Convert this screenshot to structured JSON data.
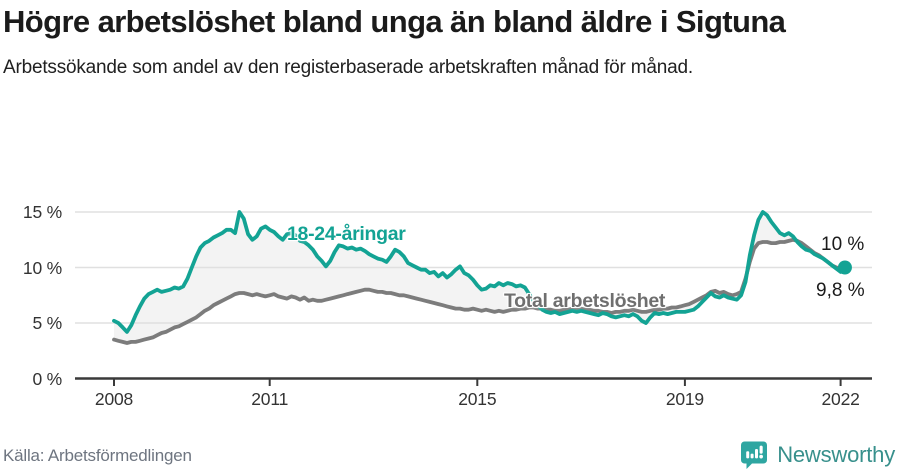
{
  "header": {
    "title": "Högre arbetslöshet bland unga än bland äldre i Sigtuna",
    "subtitle": "Arbetssökande som andel av den registerbaserade arbetskraften månad för månad."
  },
  "footer": {
    "source": "Källa: Arbetsförmedlingen",
    "logo_text": "Newsworthy"
  },
  "colors": {
    "youth_line": "#13A394",
    "total_line": "#7C7C7C",
    "total_label_text": "#6F6F6F",
    "area_fill": "#F3F3F3",
    "grid": "#E0E0E0",
    "axis": "#3A3A3A",
    "tick_text": "#333333",
    "logo_icon": "#2EA6A1",
    "logo_text": "#38908C"
  },
  "chart_data": {
    "type": "line",
    "title": "Högre arbetslöshet bland unga än bland äldre i Sigtuna",
    "subtitle": "Arbetssökande som andel av den registerbaserade arbetskraften månad för månad.",
    "x_start_year": 2008,
    "interval_months": 1,
    "x_ticks": [
      2008,
      2011,
      2015,
      2019,
      2022
    ],
    "x_tick_labels": [
      "2008",
      "2011",
      "2015",
      "2019",
      "2022"
    ],
    "y_ticks": [
      0,
      5,
      10,
      15
    ],
    "y_tick_labels": [
      "0 %",
      "5 %",
      "10 %",
      "15 %"
    ],
    "ylim": [
      0,
      16.2
    ],
    "grid": "horizontal",
    "legend_position": "inline-labels",
    "series": [
      {
        "name": "18-24-åringar",
        "color": "#13A394",
        "end_label": "10 %",
        "end_dot": true,
        "values": [
          5.2,
          5.0,
          4.6,
          4.2,
          4.8,
          5.7,
          6.5,
          7.2,
          7.6,
          7.8,
          8.0,
          7.8,
          7.9,
          8.0,
          8.2,
          8.1,
          8.3,
          9.0,
          10.0,
          11.0,
          11.8,
          12.2,
          12.4,
          12.7,
          12.9,
          13.1,
          13.4,
          13.4,
          13.1,
          15.0,
          14.4,
          13.0,
          12.5,
          12.8,
          13.5,
          13.7,
          13.4,
          13.2,
          12.8,
          12.5,
          13.0,
          13.1,
          12.9,
          12.4,
          12.3,
          12.0,
          11.6,
          11.0,
          10.6,
          10.1,
          10.6,
          11.4,
          12.0,
          11.9,
          11.7,
          11.8,
          11.6,
          11.7,
          11.5,
          11.2,
          11.0,
          10.8,
          10.7,
          10.5,
          11.0,
          11.6,
          11.4,
          11.0,
          10.4,
          10.2,
          10.0,
          9.8,
          9.8,
          9.5,
          9.6,
          9.2,
          9.5,
          9.1,
          9.4,
          9.8,
          10.1,
          9.5,
          9.3,
          8.9,
          8.4,
          8.0,
          8.1,
          8.4,
          8.3,
          8.6,
          8.4,
          8.6,
          8.5,
          8.3,
          8.4,
          8.2,
          7.6,
          7.0,
          6.6,
          6.2,
          6.0,
          5.9,
          6.0,
          5.8,
          5.9,
          6.0,
          6.1,
          6.0,
          6.1,
          6.0,
          5.9,
          5.8,
          5.7,
          5.9,
          5.8,
          5.6,
          5.5,
          5.6,
          5.7,
          5.6,
          5.8,
          5.6,
          5.2,
          5.0,
          5.5,
          5.9,
          5.8,
          5.9,
          5.8,
          5.9,
          6.0,
          6.0,
          6.0,
          6.1,
          6.2,
          6.5,
          6.9,
          7.3,
          7.7,
          7.4,
          7.3,
          7.5,
          7.3,
          7.2,
          7.1,
          7.5,
          8.7,
          11.1,
          12.9,
          14.3,
          15.0,
          14.7,
          14.1,
          13.6,
          13.1,
          12.9,
          13.1,
          12.8,
          12.3,
          11.9,
          11.6,
          11.5,
          11.2,
          11.0,
          10.8,
          10.5,
          10.2,
          9.9,
          9.6,
          10.0
        ]
      },
      {
        "name": "Total arbetslöshet",
        "color": "#7C7C7C",
        "end_label": "9,8 %",
        "end_dot": false,
        "values": [
          3.5,
          3.4,
          3.3,
          3.2,
          3.3,
          3.3,
          3.4,
          3.5,
          3.6,
          3.7,
          3.9,
          4.1,
          4.2,
          4.4,
          4.6,
          4.7,
          4.9,
          5.1,
          5.3,
          5.5,
          5.8,
          6.1,
          6.3,
          6.6,
          6.8,
          7.0,
          7.2,
          7.4,
          7.6,
          7.7,
          7.7,
          7.6,
          7.5,
          7.6,
          7.5,
          7.4,
          7.5,
          7.6,
          7.4,
          7.3,
          7.2,
          7.4,
          7.3,
          7.1,
          7.3,
          7.0,
          7.1,
          7.0,
          7.0,
          7.1,
          7.2,
          7.3,
          7.4,
          7.5,
          7.6,
          7.7,
          7.8,
          7.9,
          8.0,
          8.0,
          7.9,
          7.8,
          7.8,
          7.7,
          7.7,
          7.6,
          7.5,
          7.5,
          7.4,
          7.3,
          7.2,
          7.1,
          7.0,
          6.9,
          6.8,
          6.7,
          6.6,
          6.5,
          6.4,
          6.3,
          6.3,
          6.2,
          6.2,
          6.3,
          6.2,
          6.1,
          6.2,
          6.1,
          6.0,
          6.1,
          6.0,
          6.1,
          6.2,
          6.2,
          6.3,
          6.3,
          6.4,
          6.4,
          6.3,
          6.3,
          6.2,
          6.2,
          6.1,
          6.1,
          6.2,
          6.2,
          6.3,
          6.3,
          6.3,
          6.2,
          6.2,
          6.1,
          6.1,
          6.0,
          6.0,
          5.9,
          6.0,
          6.0,
          6.1,
          6.1,
          6.2,
          6.1,
          6.0,
          6.0,
          6.1,
          6.2,
          6.2,
          6.3,
          6.3,
          6.4,
          6.4,
          6.5,
          6.6,
          6.7,
          6.9,
          7.1,
          7.3,
          7.5,
          7.8,
          7.9,
          7.7,
          7.8,
          7.6,
          7.5,
          7.6,
          7.8,
          9.0,
          10.5,
          11.7,
          12.2,
          12.3,
          12.3,
          12.2,
          12.2,
          12.3,
          12.3,
          12.4,
          12.5,
          12.4,
          12.2,
          11.9,
          11.6,
          11.3,
          11.1,
          10.8,
          10.5,
          10.2,
          10.0,
          9.9,
          9.8
        ]
      }
    ]
  }
}
